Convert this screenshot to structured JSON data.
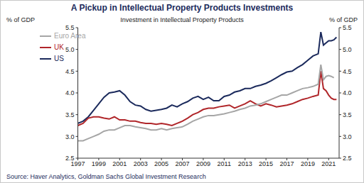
{
  "chart_data": {
    "type": "line",
    "title": "A Pickup in Intellectual Property Products Investments",
    "subtitle": "Investment in Intellectual Property Products",
    "y_label": "% of GDP",
    "y2_label": "% of GDP",
    "source": "Source: Haver Analytics, Goldman Sachs Global Investment Research",
    "x": [
      1997,
      1997.5,
      1998,
      1998.5,
      1999,
      1999.5,
      2000,
      2000.5,
      2001,
      2001.5,
      2002,
      2002.5,
      2003,
      2003.5,
      2004,
      2004.5,
      2005,
      2005.5,
      2006,
      2006.5,
      2007,
      2007.5,
      2008,
      2008.5,
      2009,
      2009.5,
      2010,
      2010.5,
      2011,
      2011.5,
      2012,
      2012.5,
      2013,
      2013.5,
      2014,
      2014.5,
      2015,
      2015.5,
      2016,
      2016.5,
      2017,
      2017.5,
      2018,
      2018.5,
      2019,
      2019.5,
      2020,
      2020.25,
      2020.5,
      2020.75,
      2021,
      2021.25,
      2021.5,
      2021.75
    ],
    "series": [
      {
        "name": "US",
        "color": "#1b2a5c",
        "values": [
          3.3,
          3.35,
          3.45,
          3.6,
          3.75,
          3.9,
          4.0,
          4.02,
          4.05,
          3.95,
          3.8,
          3.72,
          3.7,
          3.62,
          3.58,
          3.6,
          3.62,
          3.65,
          3.72,
          3.68,
          3.75,
          3.8,
          3.88,
          3.92,
          3.85,
          3.9,
          3.82,
          3.82,
          3.92,
          3.95,
          4.02,
          4.05,
          4.1,
          4.1,
          4.15,
          4.18,
          4.22,
          4.28,
          4.35,
          4.42,
          4.48,
          4.5,
          4.58,
          4.65,
          4.75,
          4.85,
          4.9,
          5.4,
          5.1,
          5.15,
          5.2,
          5.2,
          5.22,
          5.28
        ]
      },
      {
        "name": "UK",
        "color": "#b0262a",
        "values": [
          3.25,
          3.3,
          3.42,
          3.45,
          3.45,
          3.42,
          3.4,
          3.45,
          3.38,
          3.38,
          3.35,
          3.35,
          3.32,
          3.3,
          3.3,
          3.28,
          3.3,
          3.28,
          3.25,
          3.3,
          3.35,
          3.42,
          3.5,
          3.55,
          3.62,
          3.65,
          3.65,
          3.68,
          3.7,
          3.72,
          3.65,
          3.7,
          3.75,
          3.82,
          3.75,
          3.7,
          3.75,
          3.72,
          3.68,
          3.7,
          3.72,
          3.75,
          3.8,
          3.85,
          3.88,
          3.92,
          3.95,
          4.5,
          4.1,
          4.05,
          3.95,
          3.88,
          3.85,
          3.85
        ]
      },
      {
        "name": "Euro Area",
        "color": "#a6a6a6",
        "values": [
          2.9,
          2.9,
          2.95,
          3.0,
          3.05,
          3.12,
          3.15,
          3.15,
          3.2,
          3.25,
          3.25,
          3.22,
          3.2,
          3.18,
          3.15,
          3.15,
          3.18,
          3.15,
          3.18,
          3.2,
          3.22,
          3.28,
          3.35,
          3.4,
          3.45,
          3.48,
          3.48,
          3.5,
          3.52,
          3.55,
          3.58,
          3.62,
          3.65,
          3.7,
          3.72,
          3.75,
          3.8,
          3.85,
          3.9,
          3.95,
          3.95,
          4.0,
          4.05,
          4.1,
          4.12,
          4.15,
          4.2,
          4.65,
          4.3,
          4.38,
          4.4,
          4.38,
          4.35,
          null
        ]
      }
    ],
    "xlim": [
      1997,
      2022
    ],
    "xticks": [
      1997,
      1999,
      2001,
      2003,
      2005,
      2007,
      2009,
      2011,
      2013,
      2015,
      2017,
      2019,
      2021
    ],
    "ylim": [
      2.5,
      5.5
    ],
    "yticks": [
      2.5,
      {
        "value": 3,
        "label": "3.0"
      },
      3.5,
      {
        "value": 4,
        "label": "4.0"
      },
      4.5,
      {
        "value": 5,
        "label": "5.0"
      },
      5.5
    ],
    "grid": false,
    "legend": "top-left"
  }
}
